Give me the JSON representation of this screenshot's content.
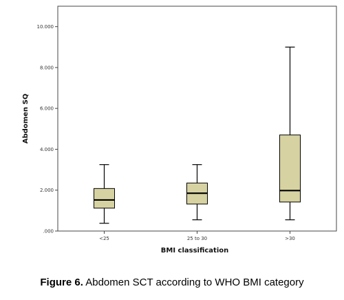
{
  "figure": {
    "label": "Figure 6.",
    "caption_text": " Abdomen SCT according to WHO BMI category"
  },
  "chart_data": {
    "type": "boxplot",
    "xlabel": "BMI classification",
    "ylabel": "Abdomen SQ",
    "ylim": [
      0,
      11
    ],
    "yticks": [
      0,
      2,
      4,
      6,
      8,
      10
    ],
    "ytick_labels": [
      ".000",
      "2.000",
      "4.000",
      "6.000",
      "8.000",
      "10.000"
    ],
    "categories": [
      "<25",
      "25 to 30",
      ">30"
    ],
    "boxes": [
      {
        "category": "<25",
        "min": 0.38,
        "q1": 1.12,
        "median": 1.52,
        "q3": 2.08,
        "max": 3.25
      },
      {
        "category": "25 to 30",
        "min": 0.55,
        "q1": 1.32,
        "median": 1.85,
        "q3": 2.35,
        "max": 3.25
      },
      {
        "category": ">30",
        "min": 0.55,
        "q1": 1.42,
        "median": 1.98,
        "q3": 4.7,
        "max": 9.0
      }
    ],
    "box_color": "#d7d2a2",
    "box_stroke": "#000000",
    "plot_background": "#ffffff",
    "grid": false
  }
}
